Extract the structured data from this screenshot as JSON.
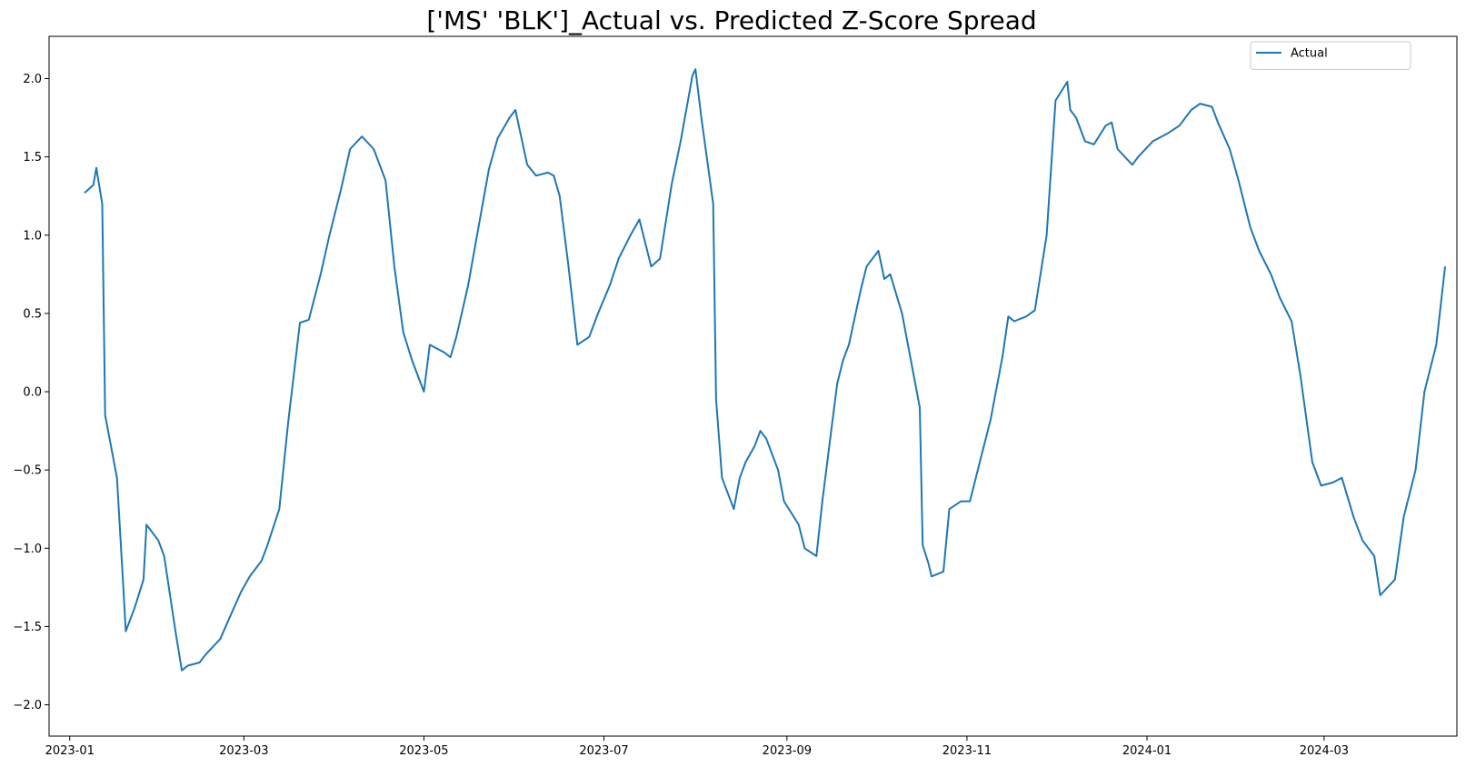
{
  "chart_data": {
    "type": "line",
    "title": "['MS' 'BLK']_Actual vs. Predicted Z-Score Spread",
    "xlabel": "",
    "ylabel": "",
    "x_range": [
      "2022-12-25",
      "2024-04-15"
    ],
    "xticks": [
      "2023-01",
      "2023-03",
      "2023-05",
      "2023-07",
      "2023-09",
      "2023-11",
      "2024-01",
      "2024-03"
    ],
    "ylim": [
      -2.2,
      2.27
    ],
    "yticks": [
      -2.0,
      -1.5,
      -1.0,
      -0.5,
      0.0,
      0.5,
      1.0,
      1.5,
      2.0
    ],
    "ytick_labels": [
      "−2.0",
      "−1.5",
      "−1.0",
      "−0.5",
      "0.0",
      "0.5",
      "1.0",
      "1.5",
      "2.0"
    ],
    "grid": false,
    "legend_position": "top-right",
    "series": [
      {
        "name": "Actual",
        "color": "#1f77b4",
        "points": [
          [
            "2023-01-06",
            1.27
          ],
          [
            "2023-01-09",
            1.32
          ],
          [
            "2023-01-10",
            1.43
          ],
          [
            "2023-01-12",
            1.2
          ],
          [
            "2023-01-13",
            -0.15
          ],
          [
            "2023-01-17",
            -0.55
          ],
          [
            "2023-01-19",
            -1.2
          ],
          [
            "2023-01-20",
            -1.53
          ],
          [
            "2023-01-23",
            -1.38
          ],
          [
            "2023-01-26",
            -1.2
          ],
          [
            "2023-01-27",
            -0.85
          ],
          [
            "2023-01-31",
            -0.95
          ],
          [
            "2023-02-02",
            -1.05
          ],
          [
            "2023-02-06",
            -1.55
          ],
          [
            "2023-02-08",
            -1.78
          ],
          [
            "2023-02-10",
            -1.75
          ],
          [
            "2023-02-14",
            -1.73
          ],
          [
            "2023-02-16",
            -1.68
          ],
          [
            "2023-02-21",
            -1.58
          ],
          [
            "2023-02-24",
            -1.45
          ],
          [
            "2023-02-28",
            -1.28
          ],
          [
            "2023-03-03",
            -1.18
          ],
          [
            "2023-03-07",
            -1.08
          ],
          [
            "2023-03-09",
            -0.98
          ],
          [
            "2023-03-13",
            -0.75
          ],
          [
            "2023-03-16",
            -0.2
          ],
          [
            "2023-03-20",
            0.44
          ],
          [
            "2023-03-23",
            0.46
          ],
          [
            "2023-03-27",
            0.75
          ],
          [
            "2023-03-30",
            1.0
          ],
          [
            "2023-04-03",
            1.3
          ],
          [
            "2023-04-06",
            1.55
          ],
          [
            "2023-04-10",
            1.63
          ],
          [
            "2023-04-14",
            1.55
          ],
          [
            "2023-04-18",
            1.35
          ],
          [
            "2023-04-21",
            0.8
          ],
          [
            "2023-04-24",
            0.38
          ],
          [
            "2023-04-27",
            0.2
          ],
          [
            "2023-05-01",
            0.0
          ],
          [
            "2023-05-03",
            0.3
          ],
          [
            "2023-05-08",
            0.25
          ],
          [
            "2023-05-10",
            0.22
          ],
          [
            "2023-05-12",
            0.35
          ],
          [
            "2023-05-16",
            0.68
          ],
          [
            "2023-05-19",
            1.0
          ],
          [
            "2023-05-23",
            1.42
          ],
          [
            "2023-05-26",
            1.62
          ],
          [
            "2023-05-30",
            1.75
          ],
          [
            "2023-06-01",
            1.8
          ],
          [
            "2023-06-05",
            1.45
          ],
          [
            "2023-06-08",
            1.38
          ],
          [
            "2023-06-12",
            1.4
          ],
          [
            "2023-06-14",
            1.38
          ],
          [
            "2023-06-16",
            1.25
          ],
          [
            "2023-06-19",
            0.8
          ],
          [
            "2023-06-22",
            0.3
          ],
          [
            "2023-06-26",
            0.35
          ],
          [
            "2023-06-29",
            0.5
          ],
          [
            "2023-07-03",
            0.68
          ],
          [
            "2023-07-06",
            0.85
          ],
          [
            "2023-07-10",
            1.0
          ],
          [
            "2023-07-13",
            1.1
          ],
          [
            "2023-07-17",
            0.8
          ],
          [
            "2023-07-20",
            0.85
          ],
          [
            "2023-07-24",
            1.33
          ],
          [
            "2023-07-27",
            1.6
          ],
          [
            "2023-07-31",
            2.02
          ],
          [
            "2023-08-01",
            2.06
          ],
          [
            "2023-08-03",
            1.75
          ],
          [
            "2023-08-07",
            1.2
          ],
          [
            "2023-08-08",
            -0.05
          ],
          [
            "2023-08-10",
            -0.55
          ],
          [
            "2023-08-14",
            -0.75
          ],
          [
            "2023-08-16",
            -0.55
          ],
          [
            "2023-08-18",
            -0.45
          ],
          [
            "2023-08-21",
            -0.35
          ],
          [
            "2023-08-23",
            -0.25
          ],
          [
            "2023-08-25",
            -0.3
          ],
          [
            "2023-08-29",
            -0.5
          ],
          [
            "2023-08-31",
            -0.7
          ],
          [
            "2023-09-05",
            -0.85
          ],
          [
            "2023-09-07",
            -1.0
          ],
          [
            "2023-09-11",
            -1.05
          ],
          [
            "2023-09-13",
            -0.7
          ],
          [
            "2023-09-15",
            -0.4
          ],
          [
            "2023-09-18",
            0.05
          ],
          [
            "2023-09-20",
            0.2
          ],
          [
            "2023-09-22",
            0.3
          ],
          [
            "2023-09-26",
            0.65
          ],
          [
            "2023-09-28",
            0.8
          ],
          [
            "2023-10-02",
            0.9
          ],
          [
            "2023-10-04",
            0.72
          ],
          [
            "2023-10-06",
            0.75
          ],
          [
            "2023-10-10",
            0.5
          ],
          [
            "2023-10-12",
            0.3
          ],
          [
            "2023-10-16",
            -0.1
          ],
          [
            "2023-10-17",
            -0.98
          ],
          [
            "2023-10-19",
            -1.1
          ],
          [
            "2023-10-20",
            -1.18
          ],
          [
            "2023-10-24",
            -1.15
          ],
          [
            "2023-10-26",
            -0.75
          ],
          [
            "2023-10-30",
            -0.7
          ],
          [
            "2023-11-02",
            -0.7
          ],
          [
            "2023-11-06",
            -0.4
          ],
          [
            "2023-11-09",
            -0.18
          ],
          [
            "2023-11-13",
            0.22
          ],
          [
            "2023-11-15",
            0.48
          ],
          [
            "2023-11-17",
            0.45
          ],
          [
            "2023-11-21",
            0.48
          ],
          [
            "2023-11-24",
            0.52
          ],
          [
            "2023-11-28",
            1.0
          ],
          [
            "2023-12-01",
            1.86
          ],
          [
            "2023-12-05",
            1.98
          ],
          [
            "2023-12-06",
            1.8
          ],
          [
            "2023-12-08",
            1.75
          ],
          [
            "2023-12-11",
            1.6
          ],
          [
            "2023-12-14",
            1.58
          ],
          [
            "2023-12-18",
            1.7
          ],
          [
            "2023-12-20",
            1.72
          ],
          [
            "2023-12-22",
            1.55
          ],
          [
            "2023-12-27",
            1.45
          ],
          [
            "2023-12-29",
            1.5
          ],
          [
            "2024-01-03",
            1.6
          ],
          [
            "2024-01-08",
            1.65
          ],
          [
            "2024-01-12",
            1.7
          ],
          [
            "2024-01-16",
            1.8
          ],
          [
            "2024-01-19",
            1.84
          ],
          [
            "2024-01-23",
            1.82
          ],
          [
            "2024-01-25",
            1.72
          ],
          [
            "2024-01-29",
            1.55
          ],
          [
            "2024-02-01",
            1.35
          ],
          [
            "2024-02-05",
            1.05
          ],
          [
            "2024-02-08",
            0.9
          ],
          [
            "2024-02-12",
            0.75
          ],
          [
            "2024-02-15",
            0.6
          ],
          [
            "2024-02-19",
            0.45
          ],
          [
            "2024-02-22",
            0.1
          ],
          [
            "2024-02-26",
            -0.45
          ],
          [
            "2024-02-29",
            -0.6
          ],
          [
            "2024-03-04",
            -0.58
          ],
          [
            "2024-03-07",
            -0.55
          ],
          [
            "2024-03-11",
            -0.8
          ],
          [
            "2024-03-14",
            -0.95
          ],
          [
            "2024-03-18",
            -1.05
          ],
          [
            "2024-03-20",
            -1.3
          ],
          [
            "2024-03-25",
            -1.2
          ],
          [
            "2024-03-28",
            -0.8
          ],
          [
            "2024-04-01",
            -0.5
          ],
          [
            "2024-04-04",
            0.0
          ],
          [
            "2024-04-08",
            0.3
          ],
          [
            "2024-04-11",
            0.8
          ]
        ]
      }
    ]
  }
}
